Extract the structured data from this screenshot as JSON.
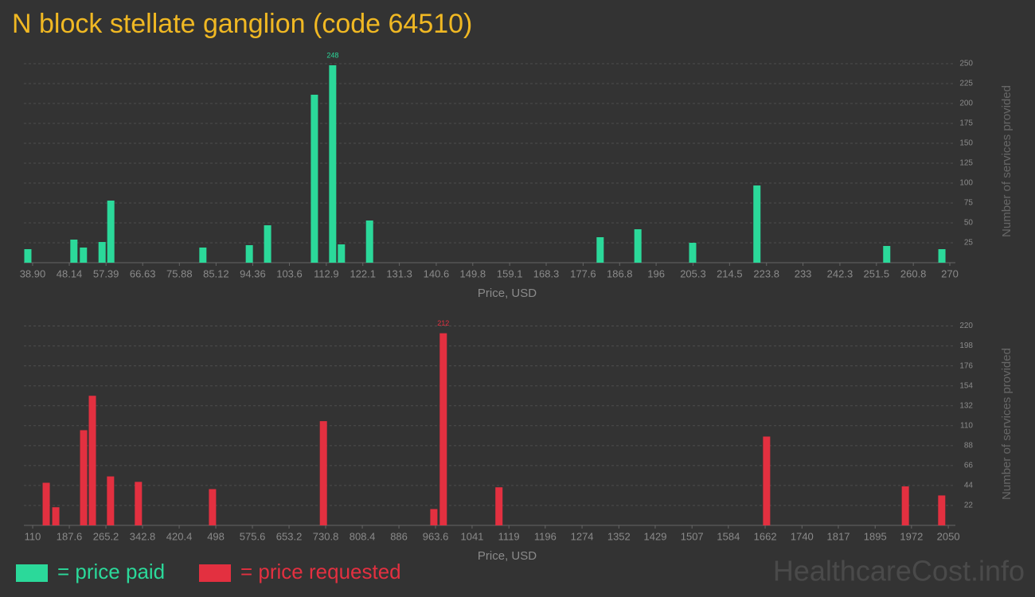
{
  "title": "N block stellate ganglion (code 64510)",
  "watermark": "HealthcareCost.info",
  "chart_data": [
    {
      "type": "bar",
      "xlabel": "Price, USD",
      "ylabel": "Number of services provided",
      "xlim": [
        36.7,
        271.4
      ],
      "ylim": [
        0,
        255
      ],
      "xticks": [
        {
          "value": 38.9,
          "label": "38.90"
        },
        48.14,
        57.39,
        66.63,
        75.88,
        85.12,
        94.36,
        103.6,
        112.9,
        122.1,
        131.3,
        140.6,
        149.8,
        159.1,
        168.3,
        177.6,
        186.8,
        196,
        205.3,
        214.5,
        223.8,
        233,
        242.3,
        251.5,
        260.8,
        270
      ],
      "yticks": [
        25,
        50,
        75,
        100,
        125,
        150,
        175,
        200,
        225,
        250
      ],
      "grid": true,
      "series": [
        {
          "name": "= price paid",
          "color": "#2bd99a",
          "x": [
            37.7,
            49.3,
            51.7,
            56.4,
            58.6,
            81.8,
            93.5,
            98.1,
            109.9,
            114.5,
            116.7,
            123.8,
            181.9,
            191.4,
            205.2,
            221.4,
            254.1,
            268
          ],
          "values": [
            17,
            29,
            19,
            26,
            78,
            19,
            22,
            47,
            211,
            248,
            23,
            53,
            32,
            42,
            25,
            97,
            21,
            17
          ]
        }
      ]
    },
    {
      "type": "bar",
      "xlabel": "Price, USD",
      "ylabel": "Number of services provided",
      "xlim": [
        91.4,
        2065
      ],
      "ylim": [
        0,
        224
      ],
      "xticks": [
        110,
        187.6,
        265.2,
        342.8,
        420.4,
        498,
        575.6,
        653.2,
        730.8,
        808.4,
        886,
        963.6,
        1041,
        1119,
        1196,
        1274,
        1352,
        1429,
        1507,
        1584,
        1662,
        1740,
        1817,
        1895,
        1972,
        2050
      ],
      "yticks": [
        22,
        44,
        66,
        88,
        110,
        132,
        154,
        176,
        198,
        220
      ],
      "grid": true,
      "series": [
        {
          "name": "= price requested",
          "color": "#e33040",
          "x": [
            138.7,
            159,
            218,
            236.5,
            275,
            334,
            491,
            726,
            960,
            980,
            1098,
            1665,
            1959,
            2036
          ],
          "values": [
            47,
            20,
            105,
            143,
            54,
            48,
            40,
            115,
            18,
            212,
            42,
            98,
            43,
            33
          ]
        }
      ]
    }
  ]
}
